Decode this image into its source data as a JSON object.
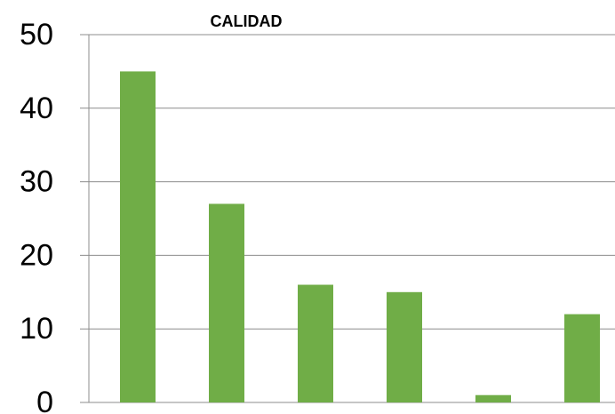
{
  "chart_data": {
    "type": "bar",
    "title": "CALIDAD",
    "categories": [
      null,
      null,
      null,
      null,
      null,
      null
    ],
    "values": [
      45,
      27,
      16,
      15,
      1,
      12
    ],
    "color": "#70ad47",
    "ylim": [
      0,
      50
    ],
    "yticks": [
      0,
      10,
      20,
      30,
      40,
      50
    ],
    "grid": true
  }
}
